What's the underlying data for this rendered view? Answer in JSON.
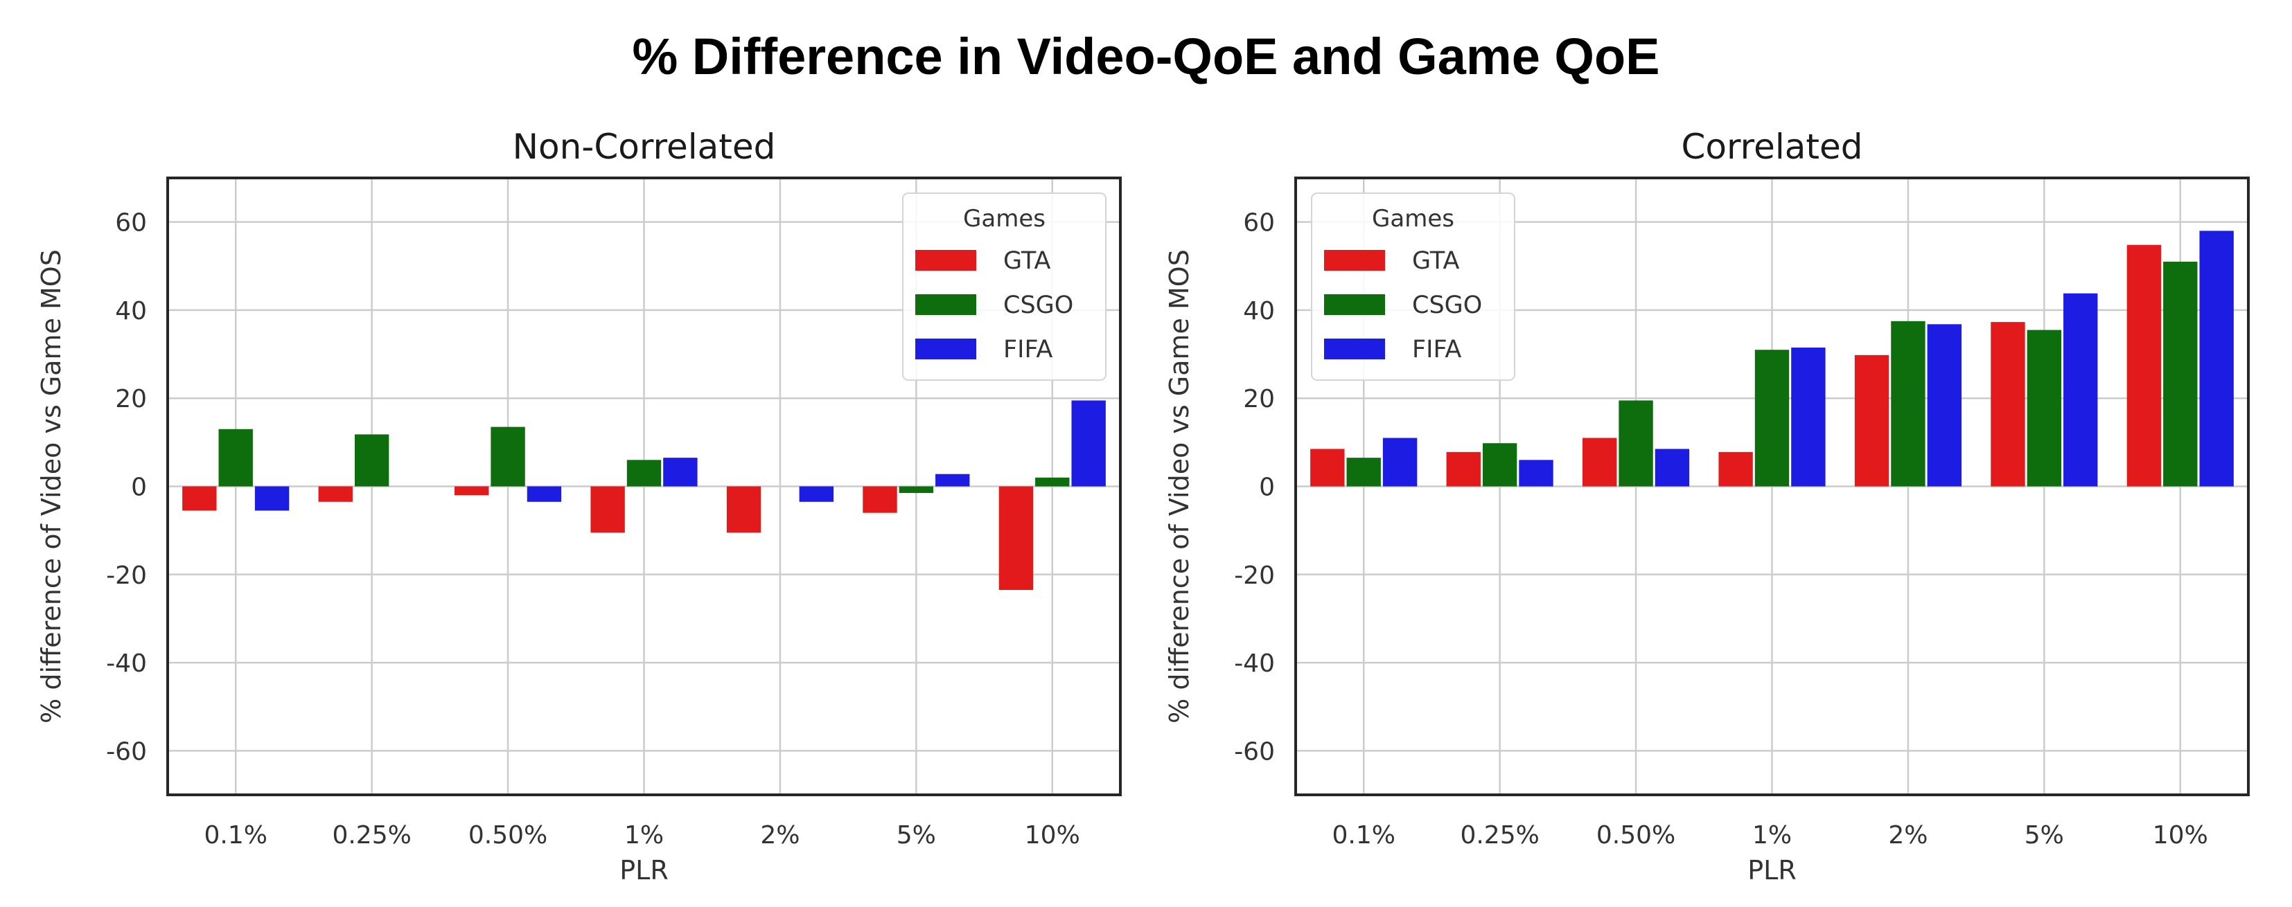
{
  "figure": {
    "title": "% Difference in Video-QoE and Game QoE"
  },
  "chart_data": [
    {
      "type": "bar",
      "title": "Non-Correlated",
      "xlabel": "PLR",
      "ylabel": "% difference of Video vs Game MOS",
      "categories": [
        "0.1%",
        "0.25%",
        "0.50%",
        "1%",
        "2%",
        "5%",
        "10%"
      ],
      "ylim": [
        -70,
        70
      ],
      "yticks": [
        -60,
        -40,
        -20,
        0,
        20,
        40,
        60
      ],
      "grid": true,
      "legend": {
        "title": "Games",
        "position": "top-right"
      },
      "series": [
        {
          "name": "GTA",
          "color": "#e31a1c",
          "values": [
            -5.5,
            -3.5,
            -2,
            -10.5,
            -10.5,
            -6,
            -23.5
          ]
        },
        {
          "name": "CSGO",
          "color": "#0e6e0e",
          "values": [
            13,
            11.8,
            13.5,
            6,
            0,
            -1.5,
            2
          ]
        },
        {
          "name": "FIFA",
          "color": "#1c1ce3",
          "values": [
            -5.5,
            0,
            -3.5,
            6.5,
            -3.5,
            2.8,
            19.5
          ]
        }
      ]
    },
    {
      "type": "bar",
      "title": "Correlated",
      "xlabel": "PLR",
      "ylabel": "% difference of Video vs Game MOS",
      "categories": [
        "0.1%",
        "0.25%",
        "0.50%",
        "1%",
        "2%",
        "5%",
        "10%"
      ],
      "ylim": [
        -70,
        70
      ],
      "yticks": [
        -60,
        -40,
        -20,
        0,
        20,
        40,
        60
      ],
      "grid": true,
      "legend": {
        "title": "Games",
        "position": "top-left"
      },
      "series": [
        {
          "name": "GTA",
          "color": "#e31a1c",
          "values": [
            8.5,
            7.8,
            11,
            7.8,
            29.8,
            37.3,
            54.8
          ]
        },
        {
          "name": "CSGO",
          "color": "#0e6e0e",
          "values": [
            6.5,
            9.8,
            19.5,
            31,
            37.5,
            35.5,
            51
          ]
        },
        {
          "name": "FIFA",
          "color": "#1c1ce3",
          "values": [
            11,
            6,
            8.5,
            31.5,
            36.8,
            43.8,
            58
          ]
        }
      ]
    }
  ]
}
